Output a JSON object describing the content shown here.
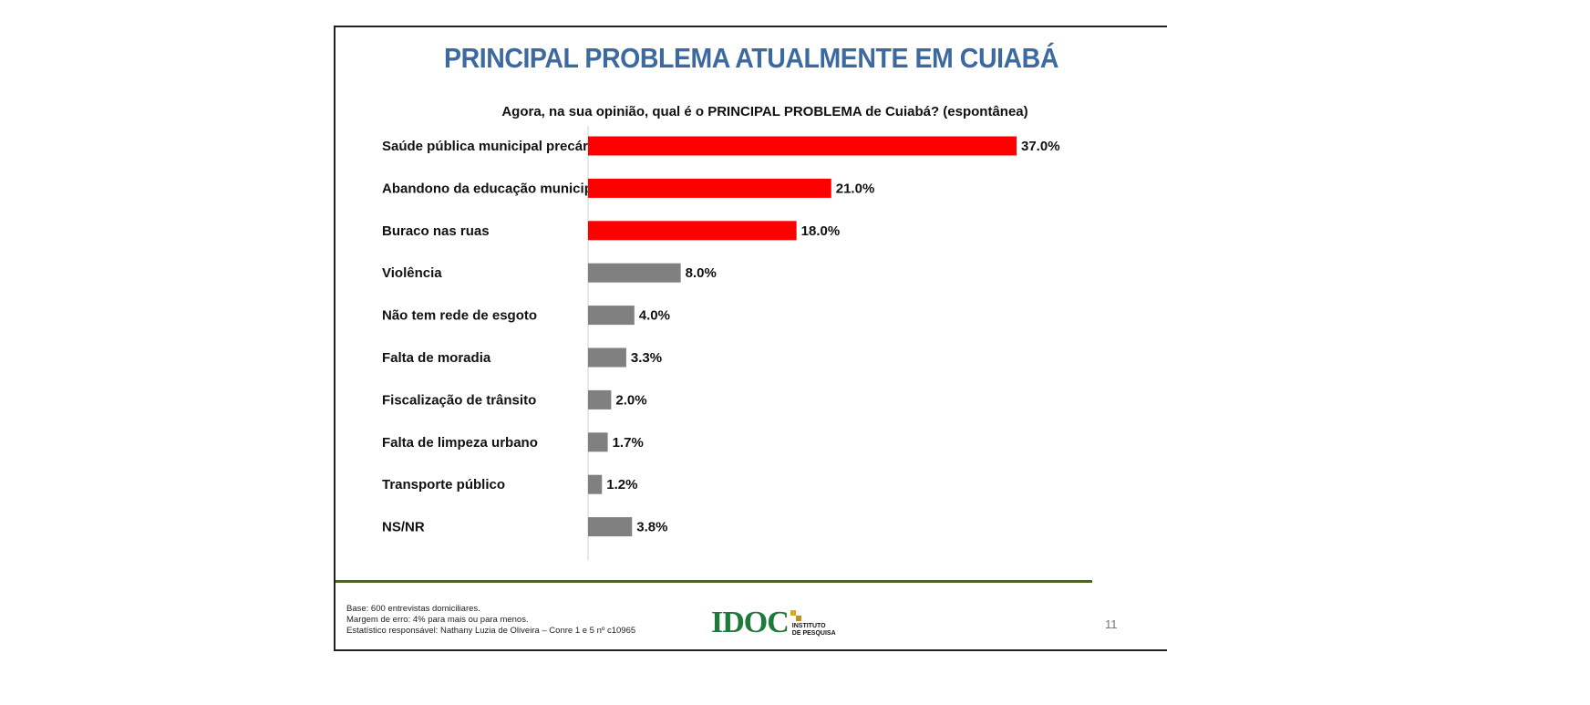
{
  "slide": {
    "title": "PRINCIPAL PROBLEMA ATUALMENTE EM CUIABÁ",
    "subtitle": "Agora, na sua opinião, qual é o PRINCIPAL PROBLEMA de Cuiabá? (espontânea)",
    "footnotes": [
      "Base: 600 entrevistas domiciliares.",
      "Margem de erro: 4% para mais ou para menos.",
      "Estatístico responsável: Nathany Luzia de Oliveira – Conre 1 e 5 nº c10965"
    ],
    "logo": {
      "name": "IDOC",
      "sub1": "INSTITUTO",
      "sub2": "DE PESQUISA"
    },
    "page_number": "11"
  },
  "colors": {
    "title": "#3c6aa0",
    "highlight": "#ff0000",
    "normal": "#808080",
    "divider": "#4f6228"
  },
  "chart_data": {
    "type": "bar",
    "orientation": "horizontal",
    "title": "PRINCIPAL PROBLEMA ATUALMENTE EM CUIABÁ",
    "categories": [
      "Saúde pública municipal precária",
      "Abandono da educação municipal",
      "Buraco nas ruas",
      "Violência",
      "Não tem rede de esgoto",
      "Falta de moradia",
      "Fiscalização de trânsito",
      "Falta de limpeza urbano",
      "Transporte público",
      "NS/NR"
    ],
    "values": [
      37.0,
      21.0,
      18.0,
      8.0,
      4.0,
      3.3,
      2.0,
      1.7,
      1.2,
      3.8
    ],
    "labels": [
      "37.0%",
      "21.0%",
      "18.0%",
      "8.0%",
      "4.0%",
      "3.3%",
      "2.0%",
      "1.7%",
      "1.2%",
      "3.8%"
    ],
    "highlight": [
      true,
      true,
      true,
      false,
      false,
      false,
      false,
      false,
      false,
      false
    ],
    "xlim": [
      0,
      40
    ],
    "xlabel": "",
    "ylabel": "",
    "grid": false,
    "legend": "none"
  }
}
